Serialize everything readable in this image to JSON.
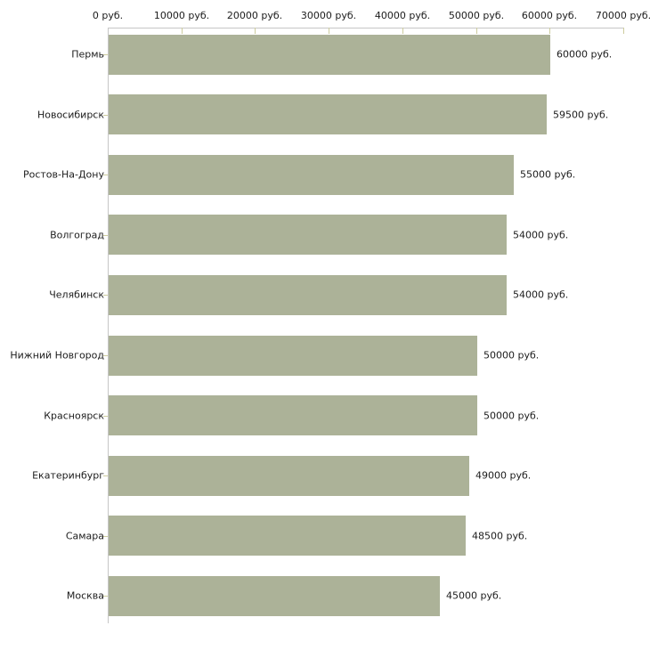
{
  "chart_data": {
    "type": "bar",
    "orientation": "horizontal",
    "title": "",
    "xlabel": "",
    "ylabel": "",
    "unit": "руб.",
    "categories": [
      "Пермь",
      "Новосибирск",
      "Ростов-На-Дону",
      "Волгоград",
      "Челябинск",
      "Нижний Новгород",
      "Красноярск",
      "Екатеринбург",
      "Самара",
      "Москва"
    ],
    "values": [
      60000,
      59500,
      55000,
      54000,
      54000,
      50000,
      50000,
      49000,
      48500,
      45000
    ],
    "value_labels": [
      "60000 руб.",
      "59500 руб.",
      "55000 руб.",
      "54000 руб.",
      "54000 руб.",
      "50000 руб.",
      "50000 руб.",
      "49000 руб.",
      "48500 руб.",
      "45000 руб."
    ],
    "x_ticks": [
      0,
      10000,
      20000,
      30000,
      40000,
      50000,
      60000,
      70000
    ],
    "x_tick_labels": [
      "0 руб.",
      "10000 руб.",
      "20000 руб.",
      "30000 руб.",
      "40000 руб.",
      "50000 руб.",
      "60000 руб.",
      "70000 руб."
    ],
    "xlim": [
      0,
      70000
    ],
    "grid": false,
    "legend": "none",
    "colors": {
      "bar_fill": "#acb298",
      "axis_line": "#c6c6c6",
      "tick_mark": "#cdcc9e",
      "text": "#1c1c1c",
      "background": "#ffffff"
    }
  }
}
